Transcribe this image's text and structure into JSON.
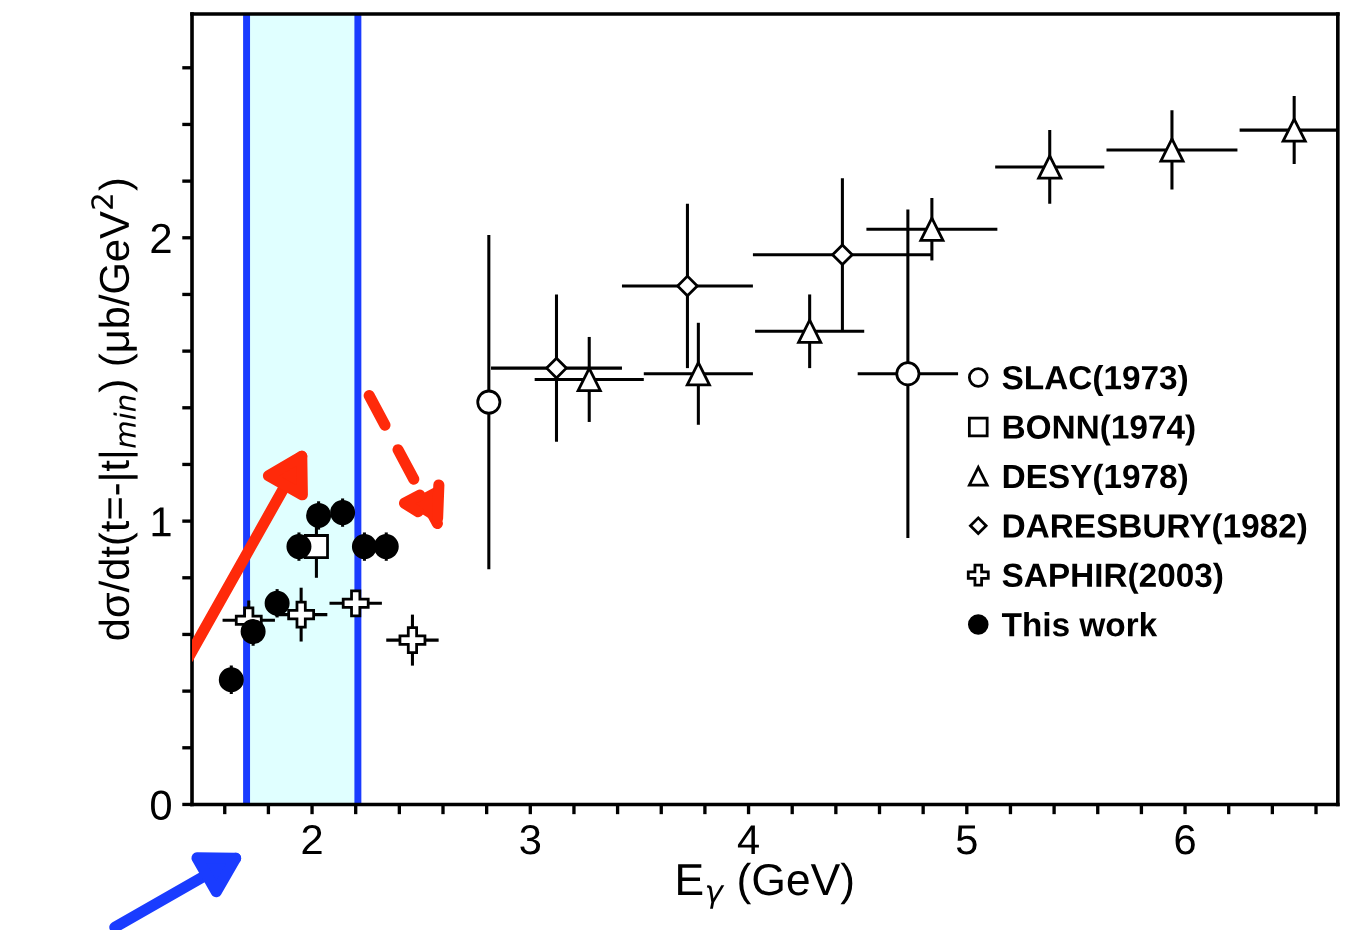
{
  "chart_data": {
    "type": "scatter",
    "xlabel": "E$_{γ}$ (GeV)",
    "ylabel": "dσ/dt(t=-|t|$_{min}$) (μb/GeV$^{2}$)",
    "xlim": [
      1.45,
      6.7
    ],
    "ylim": [
      0,
      2.79
    ],
    "xticks": [
      {
        "value": 1.6,
        "label": null
      },
      {
        "value": 1.8,
        "label": null
      },
      2,
      {
        "value": 2.2,
        "label": null
      },
      {
        "value": 2.4,
        "label": null
      },
      {
        "value": 2.6,
        "label": null
      },
      {
        "value": 2.8,
        "label": null
      },
      3,
      {
        "value": 3.2,
        "label": null
      },
      {
        "value": 3.4,
        "label": null
      },
      {
        "value": 3.6,
        "label": null
      },
      {
        "value": 3.8,
        "label": null
      },
      4,
      {
        "value": 4.2,
        "label": null
      },
      {
        "value": 4.4,
        "label": null
      },
      {
        "value": 4.6,
        "label": null
      },
      {
        "value": 4.8,
        "label": null
      },
      5,
      {
        "value": 5.2,
        "label": null
      },
      {
        "value": 5.4,
        "label": null
      },
      {
        "value": 5.6,
        "label": null
      },
      {
        "value": 5.8,
        "label": null
      },
      6,
      {
        "value": 6.2,
        "label": null
      },
      {
        "value": 6.4,
        "label": null
      },
      {
        "value": 6.6,
        "label": null
      }
    ],
    "yticks": [
      0,
      {
        "value": 0.2,
        "label": null
      },
      {
        "value": 0.4,
        "label": null
      },
      {
        "value": 0.6,
        "label": null
      },
      {
        "value": 0.8,
        "label": null
      },
      1,
      {
        "value": 1.2,
        "label": null
      },
      {
        "value": 1.4,
        "label": null
      },
      {
        "value": 1.6,
        "label": null
      },
      {
        "value": 1.8,
        "label": null
      },
      2,
      {
        "value": 2.2,
        "label": null
      },
      {
        "value": 2.4,
        "label": null
      },
      {
        "value": 2.6,
        "label": null
      }
    ],
    "grid": false,
    "legend": "right",
    "bands": [
      {
        "axis": "x",
        "from": 1.7,
        "to": 2.21,
        "color": "#e0ffff"
      }
    ],
    "ref_lines": [
      {
        "axis": "x",
        "value": 1.7,
        "color": "#1a3cff"
      },
      {
        "axis": "x",
        "value": 2.21,
        "color": "#1a3cff"
      }
    ],
    "series": [
      {
        "name": "SLAC(1973)",
        "color": "#ffffff",
        "marker": "circle",
        "x": [
          2.81,
          4.73
        ],
        "values": [
          1.42,
          1.52
        ],
        "errors": [
          0.59,
          0.58
        ],
        "xerrors": [
          null,
          0.23
        ]
      },
      {
        "name": "BONN(1974)",
        "color": "#ffffff",
        "marker": "square",
        "x": [
          2.02
        ],
        "values": [
          0.91
        ],
        "errors": [
          0.11
        ],
        "xerrors": [
          null
        ]
      },
      {
        "name": "DESY(1978)",
        "color": "#ffffff",
        "marker": "triangle",
        "x": [
          3.27,
          3.77,
          4.28,
          4.84,
          5.38,
          5.94,
          6.5
        ],
        "values": [
          1.5,
          1.52,
          1.67,
          2.03,
          2.25,
          2.31,
          2.38
        ],
        "errors": [
          0.15,
          0.18,
          0.13,
          0.11,
          0.13,
          0.14,
          0.12
        ],
        "xerrors": [
          0.25,
          0.25,
          0.25,
          0.3,
          0.25,
          0.3,
          0.25
        ]
      },
      {
        "name": "DARESBURY(1982)",
        "color": "#ffffff",
        "marker": "diamond",
        "x": [
          3.12,
          3.72,
          4.43
        ],
        "values": [
          1.54,
          1.83,
          1.94
        ],
        "errors": [
          0.26,
          0.29,
          0.27
        ],
        "xerrors": [
          0.3,
          0.3,
          0.41
        ]
      },
      {
        "name": "SAPHIR(2003)",
        "color": "#ffffff",
        "marker": "cross",
        "x": [
          1.71,
          1.95,
          2.2,
          2.46
        ],
        "values": [
          0.65,
          0.67,
          0.71,
          0.58
        ],
        "errors": [
          0.07,
          0.095,
          0.02,
          0.09
        ],
        "xerrors": [
          0.12,
          0.12,
          0.12,
          0.12
        ]
      },
      {
        "name": "This work",
        "color": "#000000",
        "marker": "circle",
        "x": [
          1.63,
          1.73,
          1.84,
          1.94,
          2.03,
          2.14,
          2.24,
          2.34
        ],
        "values": [
          0.44,
          0.61,
          0.71,
          0.91,
          1.02,
          1.03,
          0.91,
          0.91
        ],
        "errors": [
          0.05,
          0.05,
          0.05,
          0.05,
          0.05,
          0.05,
          0.05,
          0.05
        ],
        "xerrors": [
          null,
          null,
          null,
          null,
          null,
          null,
          null,
          null
        ]
      }
    ]
  }
}
